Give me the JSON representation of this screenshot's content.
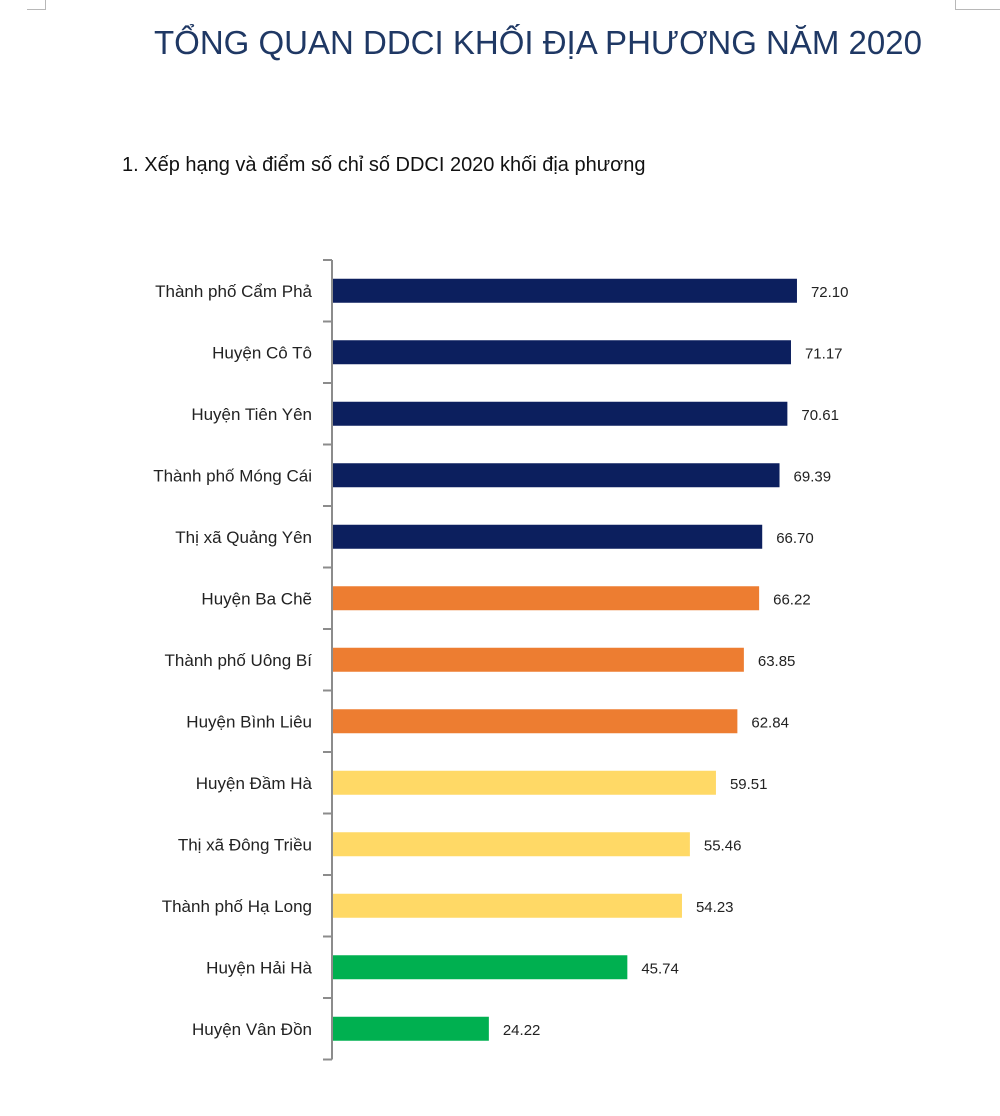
{
  "page": {
    "title": "TỔNG QUAN DDCI KHỐI ĐỊA PHƯƠNG NĂM 2020"
  },
  "chart_data": {
    "type": "bar",
    "orientation": "horizontal",
    "title": "1. Xếp hạng và điểm số chỉ số DDCI 2020 khối địa phương",
    "xlabel": "",
    "ylabel": "",
    "xlim": [
      0,
      80
    ],
    "grid": false,
    "categories": [
      "Thành phố Cẩm Phả",
      "Huyện Cô Tô",
      "Huyện Tiên Yên",
      "Thành phố Móng Cái",
      "Thị xã Quảng Yên",
      "Huyện Ba Chẽ",
      "Thành phố Uông Bí",
      "Huyện Bình Liêu",
      "Huyện Đầm Hà",
      "Thị xã Đông Triều",
      "Thành phố Hạ Long",
      "Huyện Hải Hà",
      "Huyện Vân Đồn"
    ],
    "values": [
      72.1,
      71.17,
      70.61,
      69.39,
      66.7,
      66.22,
      63.85,
      62.84,
      59.51,
      55.46,
      54.23,
      45.74,
      24.22
    ],
    "value_labels": [
      "72.10",
      "71.17",
      "70.61",
      "69.39",
      "66.70",
      "66.22",
      "63.85",
      "62.84",
      "59.51",
      "55.46",
      "54.23",
      "45.74",
      "24.22"
    ],
    "bar_colors": [
      "#0c1f5e",
      "#0c1f5e",
      "#0c1f5e",
      "#0c1f5e",
      "#0c1f5e",
      "#ed7d31",
      "#ed7d31",
      "#ed7d31",
      "#ffd966",
      "#ffd966",
      "#ffd966",
      "#00b050",
      "#00b050"
    ]
  }
}
